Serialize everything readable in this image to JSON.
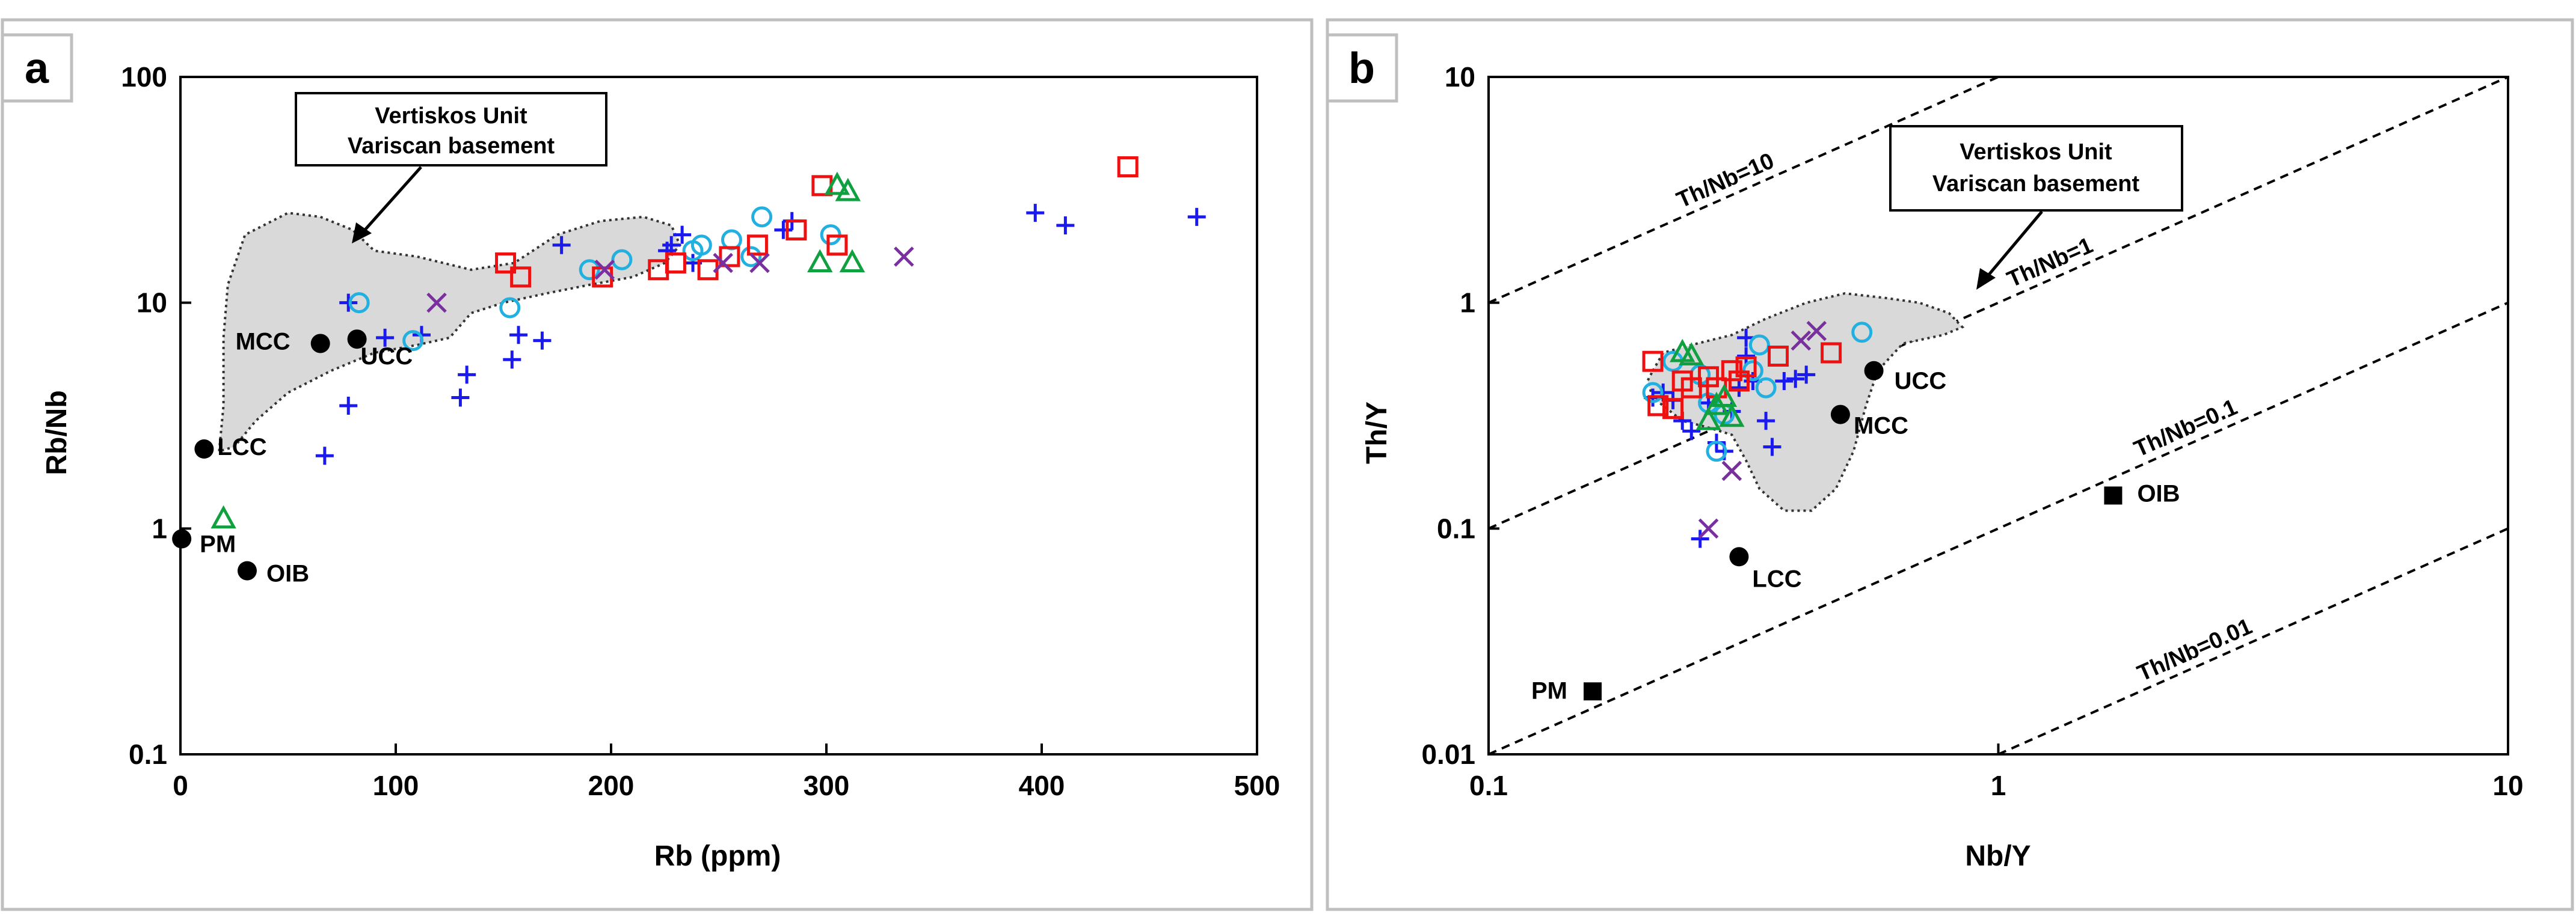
{
  "colors": {
    "red": "#ee1111",
    "blue": "#1a1aee",
    "cyan": "#22b0e0",
    "green": "#10a040",
    "purple": "#7a2fa0",
    "black": "#000000",
    "grey_fill": "#d9d9d9"
  },
  "chart_data": [
    {
      "type": "scatter",
      "panel_label": "a",
      "xlabel": "Rb (ppm)",
      "ylabel": "Rb/Nb",
      "xlim": [
        0,
        500
      ],
      "ylim": [
        0.1,
        100
      ],
      "y_scale": "log",
      "x_ticks": [
        "0",
        "100",
        "200",
        "300",
        "400",
        "500"
      ],
      "x_tick_values": [
        0,
        100,
        200,
        300,
        400,
        500
      ],
      "y_ticks": [
        "0.1",
        "1",
        "10",
        "100"
      ],
      "y_tick_values": [
        0.1,
        1,
        10,
        100
      ],
      "annotation": [
        "Vertiskos Unit",
        "Variscan basement"
      ],
      "field_outline": [
        [
          18,
          2.2
        ],
        [
          20,
          3.5
        ],
        [
          20,
          7
        ],
        [
          22,
          12
        ],
        [
          30,
          20
        ],
        [
          50,
          25
        ],
        [
          65,
          24
        ],
        [
          80,
          21
        ],
        [
          90,
          17
        ],
        [
          110,
          16
        ],
        [
          135,
          14
        ],
        [
          155,
          15
        ],
        [
          175,
          20
        ],
        [
          195,
          23
        ],
        [
          215,
          24
        ],
        [
          228,
          22
        ],
        [
          232,
          18
        ],
        [
          225,
          15
        ],
        [
          210,
          13
        ],
        [
          190,
          12
        ],
        [
          170,
          11
        ],
        [
          150,
          10
        ],
        [
          135,
          9
        ],
        [
          125,
          7
        ],
        [
          110,
          6.5
        ],
        [
          90,
          6
        ],
        [
          70,
          5
        ],
        [
          50,
          4
        ],
        [
          35,
          3
        ],
        [
          25,
          2.3
        ],
        [
          18,
          2.2
        ]
      ],
      "reference_points": [
        {
          "label": "MCC",
          "x": 65,
          "y": 6.6
        },
        {
          "label": "UCC",
          "x": 82,
          "y": 6.9
        },
        {
          "label": "LCC",
          "x": 11,
          "y": 2.25
        },
        {
          "label": "PM",
          "x": 0.6,
          "y": 0.9
        },
        {
          "label": "OIB",
          "x": 31,
          "y": 0.65
        }
      ],
      "series": [
        {
          "name": "plus",
          "symbol": "plus",
          "color": "blue",
          "points": [
            [
              67,
              2.1
            ],
            [
              78,
              3.5
            ],
            [
              78,
              10
            ],
            [
              95,
              7
            ],
            [
              112,
              7.2
            ],
            [
              130,
              3.8
            ],
            [
              133,
              4.8
            ],
            [
              154,
              5.6
            ],
            [
              157,
              7.2
            ],
            [
              168,
              6.8
            ],
            [
              177,
              18
            ],
            [
              226,
              17
            ],
            [
              228,
              18
            ],
            [
              233,
              20
            ],
            [
              238,
              15
            ],
            [
              280,
              21
            ],
            [
              284,
              23
            ],
            [
              397,
              25
            ],
            [
              411,
              22
            ],
            [
              472,
              24
            ]
          ]
        },
        {
          "name": "circle",
          "symbol": "circle",
          "color": "cyan",
          "points": [
            [
              83,
              10
            ],
            [
              108,
              6.8
            ],
            [
              153,
              9.5
            ],
            [
              190,
              14
            ],
            [
              205,
              15.5
            ],
            [
              238,
              17
            ],
            [
              242,
              18
            ],
            [
              256,
              19
            ],
            [
              265,
              16
            ],
            [
              270,
              24
            ],
            [
              302,
              20
            ]
          ]
        },
        {
          "name": "square",
          "symbol": "square",
          "color": "red",
          "points": [
            [
              151,
              15
            ],
            [
              158,
              13
            ],
            [
              196,
              13
            ],
            [
              222,
              14
            ],
            [
              230,
              15
            ],
            [
              245,
              14
            ],
            [
              255,
              16
            ],
            [
              268,
              18
            ],
            [
              286,
              21
            ],
            [
              298,
              33
            ],
            [
              305,
              18
            ],
            [
              440,
              40
            ]
          ]
        },
        {
          "name": "triangle",
          "symbol": "triangle",
          "color": "green",
          "points": [
            [
              20,
              1.1
            ],
            [
              297,
              15
            ],
            [
              305,
              33
            ],
            [
              310,
              31
            ],
            [
              312,
              15
            ]
          ]
        },
        {
          "name": "cross",
          "symbol": "cross",
          "color": "purple",
          "points": [
            [
              119,
              10
            ],
            [
              197,
              14
            ],
            [
              252,
              15
            ],
            [
              269,
              15
            ],
            [
              336,
              16
            ]
          ]
        }
      ]
    },
    {
      "type": "scatter",
      "panel_label": "b",
      "xlabel": "Nb/Y",
      "ylabel": "Th/Y",
      "xlim": [
        0.1,
        10
      ],
      "ylim": [
        0.01,
        10
      ],
      "x_scale": "log",
      "y_scale": "log",
      "x_ticks": [
        "0.1",
        "1",
        "10"
      ],
      "x_tick_values": [
        0.1,
        1,
        10
      ],
      "y_ticks": [
        "0.01",
        "0.1",
        "1",
        "10"
      ],
      "y_tick_values": [
        0.01,
        0.1,
        1,
        10
      ],
      "annotation": [
        "Vertiskos Unit",
        "Variscan basement"
      ],
      "ratio_lines": [
        {
          "label": "Th/Nb=10",
          "ratio": 10
        },
        {
          "label": "Th/Nb=1",
          "ratio": 1
        },
        {
          "label": "Th/Nb=0.1",
          "ratio": 0.1
        },
        {
          "label": "Th/Nb=0.01",
          "ratio": 0.01
        }
      ],
      "field_outline": [
        [
          0.21,
          0.5
        ],
        [
          0.22,
          0.6
        ],
        [
          0.25,
          0.65
        ],
        [
          0.3,
          0.72
        ],
        [
          0.35,
          0.85
        ],
        [
          0.42,
          1.0
        ],
        [
          0.5,
          1.1
        ],
        [
          0.6,
          1.05
        ],
        [
          0.7,
          1.0
        ],
        [
          0.8,
          0.9
        ],
        [
          0.85,
          0.78
        ],
        [
          0.78,
          0.72
        ],
        [
          0.65,
          0.66
        ],
        [
          0.58,
          0.5
        ],
        [
          0.55,
          0.35
        ],
        [
          0.52,
          0.22
        ],
        [
          0.48,
          0.15
        ],
        [
          0.43,
          0.12
        ],
        [
          0.38,
          0.12
        ],
        [
          0.34,
          0.15
        ],
        [
          0.32,
          0.2
        ],
        [
          0.3,
          0.26
        ],
        [
          0.27,
          0.28
        ],
        [
          0.24,
          0.3
        ],
        [
          0.21,
          0.38
        ],
        [
          0.205,
          0.45
        ],
        [
          0.21,
          0.5
        ]
      ],
      "reference_points": [
        {
          "label": "UCC",
          "x": 0.57,
          "y": 0.5,
          "symbol": "circle"
        },
        {
          "label": "MCC",
          "x": 0.49,
          "y": 0.32,
          "symbol": "circle"
        },
        {
          "label": "LCC",
          "x": 0.31,
          "y": 0.075,
          "symbol": "circle"
        },
        {
          "label": "OIB",
          "x": 1.68,
          "y": 0.14,
          "symbol": "square"
        },
        {
          "label": "PM",
          "x": 0.16,
          "y": 0.019,
          "symbol": "square"
        }
      ],
      "series": [
        {
          "name": "plus",
          "symbol": "plus",
          "color": "blue",
          "points": [
            [
              0.21,
              0.38
            ],
            [
              0.22,
              0.4
            ],
            [
              0.23,
              0.37
            ],
            [
              0.24,
              0.3
            ],
            [
              0.25,
              0.27
            ],
            [
              0.27,
              0.36
            ],
            [
              0.28,
              0.24
            ],
            [
              0.29,
              0.22
            ],
            [
              0.3,
              0.33
            ],
            [
              0.31,
              0.42
            ],
            [
              0.32,
              0.7
            ],
            [
              0.32,
              0.58
            ],
            [
              0.33,
              0.45
            ],
            [
              0.35,
              0.3
            ],
            [
              0.36,
              0.23
            ],
            [
              0.38,
              0.45
            ],
            [
              0.4,
              0.46
            ],
            [
              0.42,
              0.48
            ],
            [
              0.26,
              0.09
            ]
          ]
        },
        {
          "name": "circle",
          "symbol": "circle",
          "color": "cyan",
          "points": [
            [
              0.21,
              0.4
            ],
            [
              0.23,
              0.55
            ],
            [
              0.26,
              0.48
            ],
            [
              0.27,
              0.36
            ],
            [
              0.28,
              0.22
            ],
            [
              0.29,
              0.32
            ],
            [
              0.33,
              0.5
            ],
            [
              0.34,
              0.65
            ],
            [
              0.35,
              0.42
            ],
            [
              0.54,
              0.74
            ]
          ]
        },
        {
          "name": "square",
          "symbol": "square",
          "color": "red",
          "points": [
            [
              0.21,
              0.55
            ],
            [
              0.215,
              0.35
            ],
            [
              0.23,
              0.34
            ],
            [
              0.24,
              0.45
            ],
            [
              0.25,
              0.42
            ],
            [
              0.27,
              0.47
            ],
            [
              0.28,
              0.42
            ],
            [
              0.3,
              0.5
            ],
            [
              0.31,
              0.45
            ],
            [
              0.32,
              0.52
            ],
            [
              0.37,
              0.58
            ],
            [
              0.47,
              0.6
            ]
          ]
        },
        {
          "name": "triangle",
          "symbol": "triangle",
          "color": "green",
          "points": [
            [
              0.24,
              0.6
            ],
            [
              0.25,
              0.58
            ],
            [
              0.27,
              0.3
            ],
            [
              0.28,
              0.35
            ],
            [
              0.29,
              0.38
            ],
            [
              0.3,
              0.31
            ]
          ]
        },
        {
          "name": "cross",
          "symbol": "cross",
          "color": "purple",
          "points": [
            [
              0.27,
              0.1
            ],
            [
              0.3,
              0.18
            ],
            [
              0.41,
              0.68
            ],
            [
              0.44,
              0.75
            ]
          ]
        }
      ]
    }
  ]
}
